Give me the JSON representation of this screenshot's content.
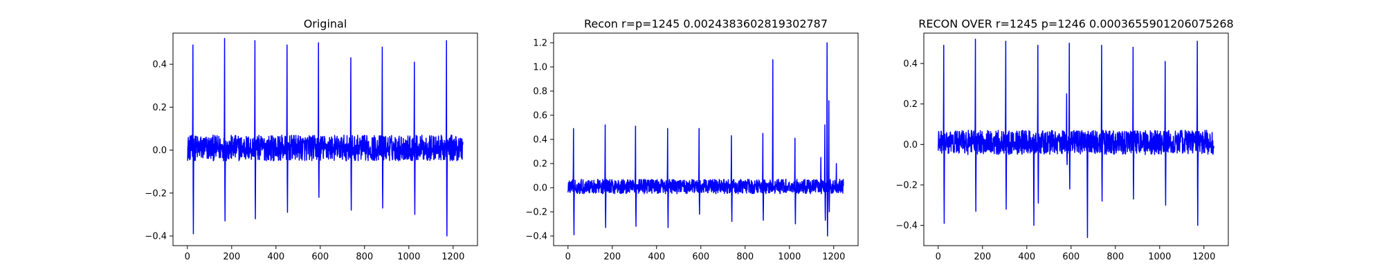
{
  "figure": {
    "background": "#ffffff",
    "line_color": "#0000ff"
  },
  "chart_data": [
    {
      "type": "line",
      "title": "Original",
      "xlabel": "",
      "ylabel": "",
      "xlim": [
        -65,
        1310
      ],
      "ylim": [
        -0.445,
        0.545
      ],
      "xticks": [
        0,
        200,
        400,
        600,
        800,
        1000,
        1200
      ],
      "xtick_labels": [
        "0",
        "200",
        "400",
        "600",
        "800",
        "1000",
        "1200"
      ],
      "yticks": [
        -0.4,
        -0.2,
        0.0,
        0.2,
        0.4
      ],
      "ytick_labels": [
        "−0.4",
        "−0.2",
        "0.0",
        "0.2",
        "0.4"
      ],
      "grid": false,
      "series": [
        {
          "color": "#0000ff",
          "n_samples": 1245,
          "noise_band": [
            -0.05,
            0.07
          ],
          "spikes": [
            {
              "x": 25,
              "peak": 0.49,
              "trough": -0.39
            },
            {
              "x": 168,
              "peak": 0.52,
              "trough": -0.33
            },
            {
              "x": 305,
              "peak": 0.51,
              "trough": -0.32
            },
            {
              "x": 450,
              "peak": 0.49,
              "trough": -0.29
            },
            {
              "x": 592,
              "peak": 0.5,
              "trough": -0.22
            },
            {
              "x": 738,
              "peak": 0.43,
              "trough": -0.28
            },
            {
              "x": 880,
              "peak": 0.48,
              "trough": -0.27
            },
            {
              "x": 1025,
              "peak": 0.41,
              "trough": -0.3
            },
            {
              "x": 1170,
              "peak": 0.51,
              "trough": -0.4
            }
          ]
        }
      ]
    },
    {
      "type": "line",
      "title": "Recon r=p=1245 0.0024383602819302787",
      "xlabel": "",
      "ylabel": "",
      "xlim": [
        -65,
        1310
      ],
      "ylim": [
        -0.48,
        1.28
      ],
      "xticks": [
        0,
        200,
        400,
        600,
        800,
        1000,
        1200
      ],
      "xtick_labels": [
        "0",
        "200",
        "400",
        "600",
        "800",
        "1000",
        "1200"
      ],
      "yticks": [
        -0.4,
        -0.2,
        0.0,
        0.2,
        0.4,
        0.6,
        0.8,
        1.0,
        1.2
      ],
      "ytick_labels": [
        "−0.4",
        "−0.2",
        "0.0",
        "0.2",
        "0.4",
        "0.6",
        "0.8",
        "1.0",
        "1.2"
      ],
      "grid": false,
      "series": [
        {
          "color": "#0000ff",
          "n_samples": 1245,
          "noise_band": [
            -0.05,
            0.07
          ],
          "spikes": [
            {
              "x": 25,
              "peak": 0.49,
              "trough": -0.39
            },
            {
              "x": 168,
              "peak": 0.52,
              "trough": -0.33
            },
            {
              "x": 305,
              "peak": 0.51,
              "trough": -0.32
            },
            {
              "x": 450,
              "peak": 0.49,
              "trough": -0.33
            },
            {
              "x": 592,
              "peak": 0.49,
              "trough": -0.22
            },
            {
              "x": 738,
              "peak": 0.43,
              "trough": -0.28
            },
            {
              "x": 880,
              "peak": 0.45,
              "trough": -0.27
            },
            {
              "x": 925,
              "peak": 1.06,
              "trough": -0.02
            },
            {
              "x": 1025,
              "peak": 0.41,
              "trough": -0.3
            },
            {
              "x": 1142,
              "peak": 0.25,
              "trough": -0.05
            },
            {
              "x": 1160,
              "peak": 0.52,
              "trough": -0.27
            },
            {
              "x": 1170,
              "peak": 1.2,
              "trough": -0.4
            },
            {
              "x": 1178,
              "peak": 0.72,
              "trough": -0.2
            },
            {
              "x": 1212,
              "peak": 0.2,
              "trough": -0.04
            }
          ]
        }
      ]
    },
    {
      "type": "line",
      "title": "RECON OVER r=1245 p=1246 0.0003655901206075268",
      "xlabel": "",
      "ylabel": "",
      "xlim": [
        -65,
        1310
      ],
      "ylim": [
        -0.5,
        0.55
      ],
      "xticks": [
        0,
        200,
        400,
        600,
        800,
        1000,
        1200
      ],
      "xtick_labels": [
        "0",
        "200",
        "400",
        "600",
        "800",
        "1000",
        "1200"
      ],
      "yticks": [
        -0.4,
        -0.2,
        0.0,
        0.2,
        0.4
      ],
      "ytick_labels": [
        "−0.4",
        "−0.2",
        "0.0",
        "0.2",
        "0.4"
      ],
      "grid": false,
      "series": [
        {
          "color": "#0000ff",
          "n_samples": 1246,
          "noise_band": [
            -0.05,
            0.07
          ],
          "spikes": [
            {
              "x": 25,
              "peak": 0.49,
              "trough": -0.39
            },
            {
              "x": 168,
              "peak": 0.52,
              "trough": -0.33
            },
            {
              "x": 305,
              "peak": 0.51,
              "trough": -0.32
            },
            {
              "x": 430,
              "peak": 0.05,
              "trough": -0.4
            },
            {
              "x": 450,
              "peak": 0.49,
              "trough": -0.29
            },
            {
              "x": 580,
              "peak": 0.25,
              "trough": -0.1
            },
            {
              "x": 592,
              "peak": 0.5,
              "trough": -0.22
            },
            {
              "x": 672,
              "peak": 0.05,
              "trough": -0.46
            },
            {
              "x": 738,
              "peak": 0.49,
              "trough": -0.28
            },
            {
              "x": 880,
              "peak": 0.48,
              "trough": -0.27
            },
            {
              "x": 1025,
              "peak": 0.41,
              "trough": -0.3
            },
            {
              "x": 1170,
              "peak": 0.51,
              "trough": -0.4
            }
          ]
        }
      ]
    }
  ]
}
